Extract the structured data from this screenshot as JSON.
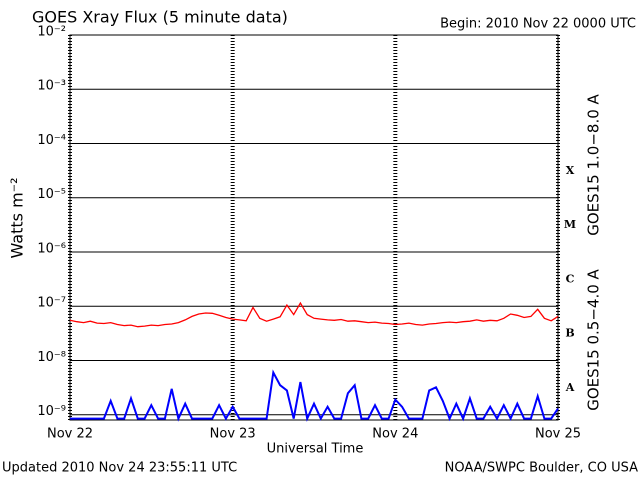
{
  "chart_data": {
    "type": "line",
    "title": "GOES Xray Flux (5 minute data)",
    "subtitle": "Begin:  2010 Nov 22 0000 UTC",
    "y_label": "Watts m⁻²",
    "x_label": "Universal Time",
    "footer_left": "Updated 2010 Nov 24 23:55:11 UTC",
    "footer_right": "NOAA/SWPC Boulder, CO USA",
    "class_labels": [
      "X",
      "M",
      "C",
      "B",
      "A"
    ],
    "log_y": true,
    "grid": true,
    "x": [
      0,
      1,
      2,
      3,
      4,
      5,
      6,
      7,
      8,
      9,
      10,
      11,
      12,
      13,
      14,
      15,
      16,
      17,
      18,
      19,
      20,
      21,
      22,
      23,
      24,
      25,
      26,
      27,
      28,
      29,
      30,
      31,
      32,
      33,
      34,
      35,
      36,
      37,
      38,
      39,
      40,
      41,
      42,
      43,
      44,
      45,
      46,
      47,
      48,
      49,
      50,
      51,
      52,
      53,
      54,
      55,
      56,
      57,
      58,
      59,
      60,
      61,
      62,
      63,
      64,
      65,
      66,
      67,
      68,
      69,
      70,
      71,
      72
    ],
    "xlim": [
      0,
      72
    ],
    "xticks": [
      {
        "value": 0,
        "label": "Nov 22"
      },
      {
        "value": 24,
        "label": "Nov 23"
      },
      {
        "value": 48,
        "label": "Nov 24"
      },
      {
        "value": 72,
        "label": "Nov 25"
      }
    ],
    "ylim": [
      8e-10,
      0.01
    ],
    "yticks": [
      {
        "value": 1e-09,
        "label": "10⁻⁹"
      },
      {
        "value": 1e-08,
        "label": "10⁻⁸"
      },
      {
        "value": 1e-07,
        "label": "10⁻⁷"
      },
      {
        "value": 1e-06,
        "label": "10⁻⁶"
      },
      {
        "value": 1e-05,
        "label": "10⁻⁵"
      },
      {
        "value": 0.0001,
        "label": "10⁻⁴"
      },
      {
        "value": 0.001,
        "label": "10⁻³"
      },
      {
        "value": 0.01,
        "label": "10⁻²"
      }
    ],
    "series": [
      {
        "name": "GOES15 1.0−8.0 A",
        "color": "#ff0000",
        "values": [
          5.5e-08,
          5.2e-08,
          5e-08,
          5.3e-08,
          4.9e-08,
          4.8e-08,
          5e-08,
          4.6e-08,
          4.4e-08,
          4.5e-08,
          4.2e-08,
          4.3e-08,
          4.5e-08,
          4.4e-08,
          4.6e-08,
          4.7e-08,
          5e-08,
          5.6e-08,
          6.5e-08,
          7.2e-08,
          7.5e-08,
          7.4e-08,
          6.8e-08,
          6.2e-08,
          5.8e-08,
          5.6e-08,
          5.4e-08,
          9.5e-08,
          6e-08,
          5.3e-08,
          5.8e-08,
          6.4e-08,
          1.05e-07,
          7e-08,
          1.15e-07,
          7e-08,
          6e-08,
          5.8e-08,
          5.6e-08,
          5.5e-08,
          5.7e-08,
          5.3e-08,
          5.4e-08,
          5.2e-08,
          5e-08,
          5.1e-08,
          4.9e-08,
          4.8e-08,
          4.6e-08,
          4.7e-08,
          4.9e-08,
          4.6e-08,
          4.5e-08,
          4.7e-08,
          4.8e-08,
          5e-08,
          5.1e-08,
          5e-08,
          5.2e-08,
          5.3e-08,
          5.6e-08,
          5.3e-08,
          5.5e-08,
          5.4e-08,
          6e-08,
          7.2e-08,
          6.8e-08,
          6.2e-08,
          6.5e-08,
          8.8e-08,
          6e-08,
          5.4e-08,
          6.5e-08
        ]
      },
      {
        "name": "GOES15 0.5−4.0 A",
        "color": "#0000ff",
        "values": [
          8.5e-10,
          8.5e-10,
          8.5e-10,
          8.5e-10,
          8.5e-10,
          8.5e-10,
          1.8e-09,
          8.5e-10,
          8.5e-10,
          2e-09,
          8.5e-10,
          8.5e-10,
          1.5e-09,
          8.5e-10,
          8.5e-10,
          3e-09,
          8.5e-10,
          1.6e-09,
          8.5e-10,
          8.5e-10,
          8.5e-10,
          8.5e-10,
          1.5e-09,
          8.5e-10,
          1.4e-09,
          8.5e-10,
          8.5e-10,
          8.5e-10,
          8.5e-10,
          8.5e-10,
          6e-09,
          3.5e-09,
          2.8e-09,
          8.5e-10,
          4e-09,
          8.5e-10,
          1.6e-09,
          8.5e-10,
          1.4e-09,
          8.5e-10,
          8.5e-10,
          2.5e-09,
          3.5e-09,
          8.5e-10,
          8.5e-10,
          1.5e-09,
          8.5e-10,
          8.5e-10,
          1.9e-09,
          1.4e-09,
          8.5e-10,
          8.5e-10,
          8.5e-10,
          2.8e-09,
          3.2e-09,
          1.8e-09,
          8.5e-10,
          1.6e-09,
          8.5e-10,
          2e-09,
          8.5e-10,
          8.5e-10,
          1.4e-09,
          8.5e-10,
          1.5e-09,
          8.5e-10,
          1.6e-09,
          8.5e-10,
          8.5e-10,
          2.2e-09,
          8.5e-10,
          8.5e-10,
          1.3e-09
        ]
      }
    ]
  }
}
